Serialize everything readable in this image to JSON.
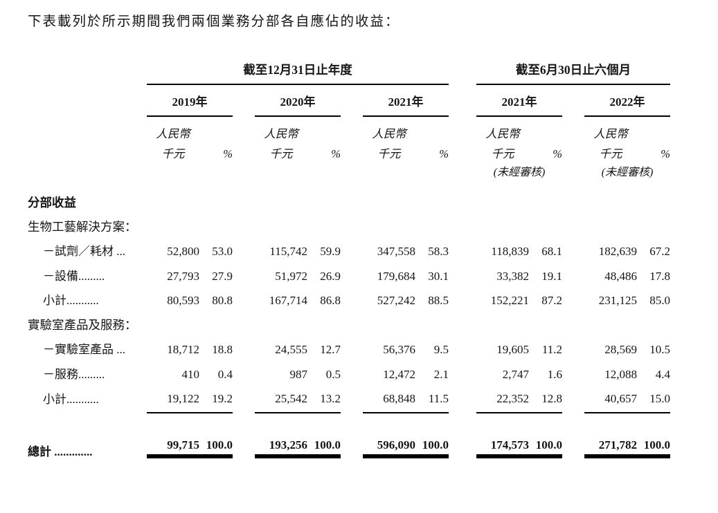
{
  "page": {
    "intro": "下表載列於所示期間我們兩個業務分部各自應佔的收益："
  },
  "table": {
    "period_groups": [
      {
        "label": "截至12月31日止年度"
      },
      {
        "label": "截至6月30日止六個月"
      }
    ],
    "years": [
      "2019年",
      "2020年",
      "2021年",
      "2021年",
      "2022年"
    ],
    "units": {
      "currency": "人民幣",
      "thousands": "千元",
      "percent": "%",
      "unaudited": "(未經審核)"
    },
    "rows": {
      "segment_header": "分部收益",
      "bioprocess_header": "生物工藝解決方案：",
      "reagents": {
        "label": "－試劑／耗材 ...",
        "values": [
          "52,800",
          "53.0",
          "115,742",
          "59.9",
          "347,558",
          "58.3",
          "118,839",
          "68.1",
          "182,639",
          "67.2"
        ]
      },
      "equipment": {
        "label": "－設備.........",
        "values": [
          "27,793",
          "27.9",
          "51,972",
          "26.9",
          "179,684",
          "30.1",
          "33,382",
          "19.1",
          "48,486",
          "17.8"
        ]
      },
      "bioprocess_subtotal": {
        "label": "小計...........",
        "values": [
          "80,593",
          "80.8",
          "167,714",
          "86.8",
          "527,242",
          "88.5",
          "152,221",
          "87.2",
          "231,125",
          "85.0"
        ]
      },
      "lab_header": "實驗室產品及服務：",
      "lab_products": {
        "label": "－實驗室產品 ...",
        "values": [
          "18,712",
          "18.8",
          "24,555",
          "12.7",
          "56,376",
          "9.5",
          "19,605",
          "11.2",
          "28,569",
          "10.5"
        ]
      },
      "services": {
        "label": "－服務.........",
        "values": [
          "410",
          "0.4",
          "987",
          "0.5",
          "12,472",
          "2.1",
          "2,747",
          "1.6",
          "12,088",
          "4.4"
        ]
      },
      "lab_subtotal": {
        "label": "小計...........",
        "values": [
          "19,122",
          "19.2",
          "25,542",
          "13.2",
          "68,848",
          "11.5",
          "22,352",
          "12.8",
          "40,657",
          "15.0"
        ]
      },
      "total": {
        "label": "總計 .............",
        "values": [
          "99,715",
          "100.0",
          "193,256",
          "100.0",
          "596,090",
          "100.0",
          "174,573",
          "100.0",
          "271,782",
          "100.0"
        ]
      }
    }
  }
}
